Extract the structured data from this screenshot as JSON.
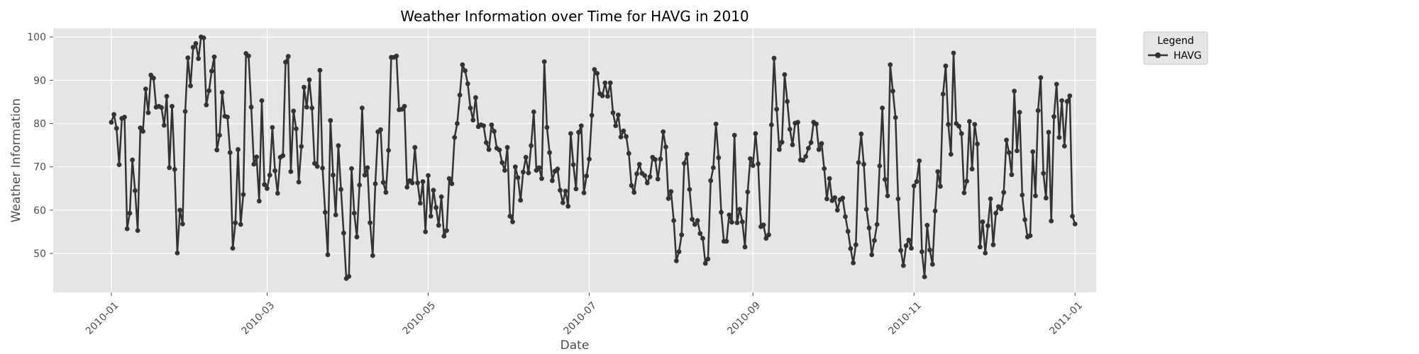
{
  "chart_data": {
    "type": "line",
    "title": "Weather Information over Time for HAVG in 2010",
    "xlabel": "Date",
    "ylabel": "Weather Information",
    "xlim": [
      "2009-12-10",
      "2011-01-09"
    ],
    "ylim": [
      41,
      102
    ],
    "x_ticks": [
      "2010-01",
      "2010-03",
      "2010-05",
      "2010-07",
      "2010-09",
      "2010-11",
      "2011-01"
    ],
    "y_ticks": [
      50,
      60,
      70,
      80,
      90,
      100
    ],
    "grid": true,
    "legend": {
      "title": "Legend",
      "position": "outside-top-right"
    },
    "colors": {
      "series": "#333333",
      "plot_bg": "#e5e5e5",
      "grid": "#ffffff"
    },
    "series": [
      {
        "name": "HAVG",
        "x_start": "2010-01-01",
        "x_step": "1 day",
        "values": [
          80.3,
          82.1,
          78.9,
          70.5,
          81.2,
          81.5,
          55.7,
          59.3,
          71.6,
          64.5,
          55.3,
          79.0,
          78.2,
          88.0,
          82.5,
          91.2,
          90.5,
          83.8,
          84.0,
          83.7,
          79.6,
          86.3,
          69.8,
          84.0,
          69.4,
          50.1,
          60.0,
          56.8,
          82.8,
          95.2,
          88.7,
          97.6,
          98.5,
          95.0,
          100.0,
          99.8,
          84.3,
          87.6,
          92.1,
          95.4,
          73.9,
          77.3,
          87.2,
          81.7,
          81.5,
          73.3,
          51.2,
          57.1,
          74.0,
          56.7,
          63.6,
          96.2,
          95.6,
          83.8,
          70.6,
          72.3,
          62.1,
          85.3,
          65.9,
          65.0,
          68.1,
          79.1,
          69.1,
          63.9,
          72.2,
          72.6,
          94.2,
          95.5,
          68.9,
          82.9,
          78.8,
          66.5,
          74.7,
          88.4,
          83.8,
          90.1,
          83.6,
          70.8,
          70.1,
          92.3,
          69.7,
          59.5,
          49.7,
          80.7,
          68.1,
          58.9,
          74.9,
          64.8,
          54.7,
          44.2,
          44.7,
          69.6,
          59.3,
          53.8,
          65.8,
          83.6,
          68.1,
          69.8,
          57.1,
          49.5,
          66.1,
          78.1,
          78.6,
          66.4,
          64.1,
          73.8,
          95.3,
          95.3,
          95.6,
          83.2,
          83.3,
          84.0,
          65.3,
          66.8,
          66.3,
          74.5,
          66.3,
          61.6,
          66.6,
          55.0,
          68.0,
          58.6,
          64.6,
          60.6,
          56.5,
          63.1,
          54.0,
          55.3,
          67.3,
          66.1,
          76.8,
          80.0,
          86.6,
          93.6,
          92.2,
          89.2,
          83.6,
          80.8,
          86.0,
          79.3,
          79.7,
          79.5,
          75.6,
          74.0,
          79.7,
          78.2,
          74.3,
          73.9,
          71.0,
          69.2,
          74.5,
          58.6,
          57.3,
          70.0,
          67.5,
          62.3,
          68.8,
          72.2,
          68.6,
          74.9,
          82.7,
          69.2,
          69.8,
          67.3,
          94.3,
          79.1,
          73.3,
          66.8,
          69.0,
          69.5,
          64.6,
          61.7,
          64.4,
          60.9,
          77.7,
          70.5,
          64.9,
          78.0,
          79.5,
          64.0,
          67.9,
          71.8,
          81.9,
          92.5,
          91.6,
          86.9,
          86.4,
          89.4,
          86.3,
          89.4,
          82.5,
          79.5,
          82.0,
          76.9,
          78.3,
          77.0,
          73.1,
          65.7,
          64.1,
          68.4,
          70.6,
          68.5,
          68.0,
          66.3,
          67.7,
          72.2,
          71.7,
          67.2,
          71.8,
          78.1,
          74.6,
          62.7,
          64.3,
          57.6,
          48.3,
          50.4,
          54.3,
          70.8,
          72.9,
          64.8,
          57.9,
          56.7,
          57.6,
          54.6,
          53.5,
          47.7,
          48.7,
          66.8,
          69.8,
          79.9,
          72.1,
          59.5,
          52.8,
          52.8,
          58.9,
          57.2,
          77.3,
          57.1,
          60.2,
          57.3,
          51.5,
          64.2,
          71.9,
          70.3,
          77.7,
          70.7,
          56.2,
          56.6,
          53.5,
          54.3,
          79.7,
          95.1,
          83.3,
          74.0,
          75.7,
          91.3,
          85.1,
          78.7,
          75.1,
          80.1,
          80.3,
          71.6,
          71.5,
          72.4,
          74.3,
          75.6,
          80.3,
          79.9,
          74.0,
          75.4,
          69.6,
          62.6,
          67.3,
          62.2,
          62.9,
          60.0,
          62.4,
          62.8,
          58.5,
          55.1,
          51.1,
          47.8,
          52.0,
          71.0,
          77.6,
          70.6,
          60.2,
          55.9,
          49.7,
          53.0,
          56.7,
          70.2,
          83.6,
          67.1,
          63.3,
          93.6,
          87.5,
          81.4,
          62.6,
          50.7,
          47.2,
          51.8,
          53.1,
          51.2,
          65.6,
          66.6,
          71.4,
          50.4,
          44.6,
          56.5,
          50.8,
          47.5,
          59.8,
          68.9,
          65.5,
          86.8,
          93.3,
          79.8,
          72.9,
          96.3,
          80.0,
          79.4,
          77.7,
          64.0,
          66.7,
          80.5,
          69.5,
          79.8,
          75.3,
          51.5,
          57.3,
          50.1,
          56.4,
          62.6,
          52.0,
          59.3,
          60.8,
          60.3,
          64.1,
          76.2,
          73.3,
          68.2,
          87.5,
          73.7,
          82.6,
          63.5,
          57.8,
          53.8,
          54.1,
          73.5,
          63.3,
          83.0,
          90.6,
          68.5,
          62.8,
          78.0,
          57.5,
          81.6,
          89.1,
          76.8,
          85.3,
          74.8,
          85.1,
          86.4,
          58.6,
          56.8
        ]
      }
    ]
  }
}
